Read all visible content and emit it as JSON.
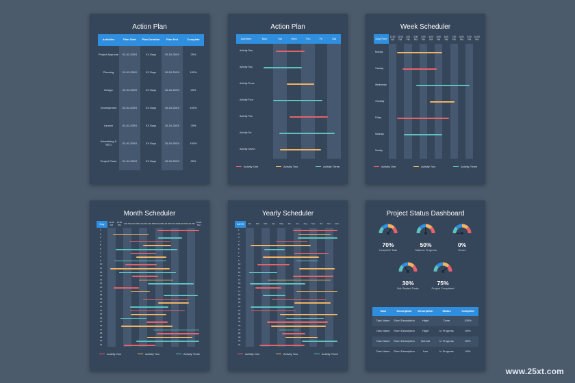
{
  "colors": {
    "red": "#e8626a",
    "orange": "#f2b463",
    "teal": "#5fc2c2",
    "blue": "#2f8ede"
  },
  "action_plan_table": {
    "title": "Action Plan",
    "headers": [
      "Activities",
      "Plan Start",
      "Plan Duration",
      "Plan End",
      "Complete"
    ],
    "rows": [
      [
        "Project Approval",
        "01-01-20XX",
        "XX Days",
        "10-10-20XX",
        "25%"
      ],
      [
        "Planning",
        "01-01-20XX",
        "XX Days",
        "10-10-20XX",
        "100%"
      ],
      [
        "Design",
        "01-01-20XX",
        "XX Days",
        "10-10-20XX",
        "25%"
      ],
      [
        "Development",
        "01-01-20XX",
        "XX Days",
        "10-10-20XX",
        "100%"
      ],
      [
        "Launch",
        "01-01-20XX",
        "XX Days",
        "10-10-20XX",
        "25%"
      ],
      [
        "Advertising & SEO",
        "01-01-20XX",
        "XX Days",
        "10-10-20XX",
        "100%"
      ],
      [
        "Project Close",
        "01-01-20XX",
        "XX Days",
        "10-10-20XX",
        "25%"
      ]
    ]
  },
  "action_plan_gantt": {
    "title": "Action Plan",
    "headers": [
      "Activities",
      "Mon",
      "Tue",
      "Wed",
      "Thu",
      "Fri",
      "Sat"
    ],
    "rows": [
      "Activity One",
      "Activity Two",
      "Activity Three",
      "Activity Four",
      "Activity Five",
      "Activity Six",
      "Activity Seven"
    ],
    "legend": [
      "Activity One",
      "Activity Two",
      "Activity Three"
    ]
  },
  "week_scheduler": {
    "title": "Week Scheduler",
    "headers": [
      "Day/Time",
      "11:00 AM",
      "12:00 PM",
      "1:00 PM",
      "2:00 PM",
      "3:00 PM",
      "4:00 PM",
      "5:00 PM",
      "6:00 PM",
      "7:00 PM",
      "8:00 PM",
      "9:00 PM",
      "10:00 PM"
    ],
    "rows": [
      "Monday",
      "Tuesday",
      "Wednesday",
      "Thursday",
      "Friday",
      "Saturday",
      "Sunday"
    ],
    "legend": [
      "Activity One",
      "Activity Two",
      "Activity Three"
    ]
  },
  "month_scheduler": {
    "title": "Month Scheduler",
    "headers": [
      "Day",
      "11:00 AM",
      "12:00 PM",
      "1:00 PM",
      "2:00 PM",
      "3:00 PM",
      "4:00 PM",
      "5:00 PM",
      "6:00 PM",
      "7:00 PM",
      "8:00 PM",
      "9:00 PM",
      "10:00 PM"
    ],
    "days": [
      "1",
      "2",
      "3",
      "4",
      "5",
      "6",
      "7",
      "8",
      "9",
      "10",
      "11",
      "12",
      "13",
      "14",
      "15",
      "16",
      "17",
      "18",
      "19",
      "20",
      "21",
      "22",
      "23",
      "24",
      "25",
      "26",
      "27",
      "28",
      "29",
      "30",
      "31"
    ],
    "legend": [
      "Activity One",
      "Activity Two",
      "Activity Three"
    ]
  },
  "yearly_scheduler": {
    "title": "Yearly Scheduler",
    "headers": [
      "DAYS",
      "Jan",
      "Feb",
      "Mar",
      "Apr",
      "May",
      "Jun",
      "Jul",
      "Aug",
      "Sep",
      "Oct",
      "Nov",
      "Dec"
    ],
    "days": [
      "1",
      "2",
      "3",
      "4",
      "5",
      "6",
      "7",
      "8",
      "9",
      "10",
      "11",
      "12",
      "13",
      "14",
      "15",
      "16",
      "17",
      "18",
      "19",
      "20",
      "21",
      "22",
      "23",
      "24",
      "25",
      "26",
      "27",
      "28",
      "29",
      "30",
      "31"
    ],
    "legend": [
      "Activity One",
      "Activity Two",
      "Activity Three"
    ]
  },
  "dashboard": {
    "title": "Project Status Dashboard",
    "gauges": [
      {
        "value": "70%",
        "label": "Complete Task",
        "level": 0.7
      },
      {
        "value": "50%",
        "label": "Tasks in Progress",
        "level": 0.5
      },
      {
        "value": "0%",
        "label": "Errors",
        "level": 0.0
      },
      {
        "value": "30%",
        "label": "Not Started Tasks",
        "level": 0.3
      },
      {
        "value": "75%",
        "label": "Project Completed",
        "level": 0.75
      }
    ],
    "table": {
      "headers": [
        "Task",
        "Description",
        "Description",
        "Status",
        "Complete"
      ],
      "rows": [
        [
          "Task Name",
          "Short Description",
          "Hight",
          "Done",
          "100%"
        ],
        [
          "Task Name",
          "Short Description",
          "Hight",
          "In Progress",
          "60%"
        ],
        [
          "Task Name",
          "Short Description",
          "Normal",
          "In Progress",
          "80%"
        ],
        [
          "Task Name",
          "Short Description",
          "Low",
          "In Progress",
          "40%"
        ]
      ]
    }
  },
  "watermark": "www.25xt.com"
}
